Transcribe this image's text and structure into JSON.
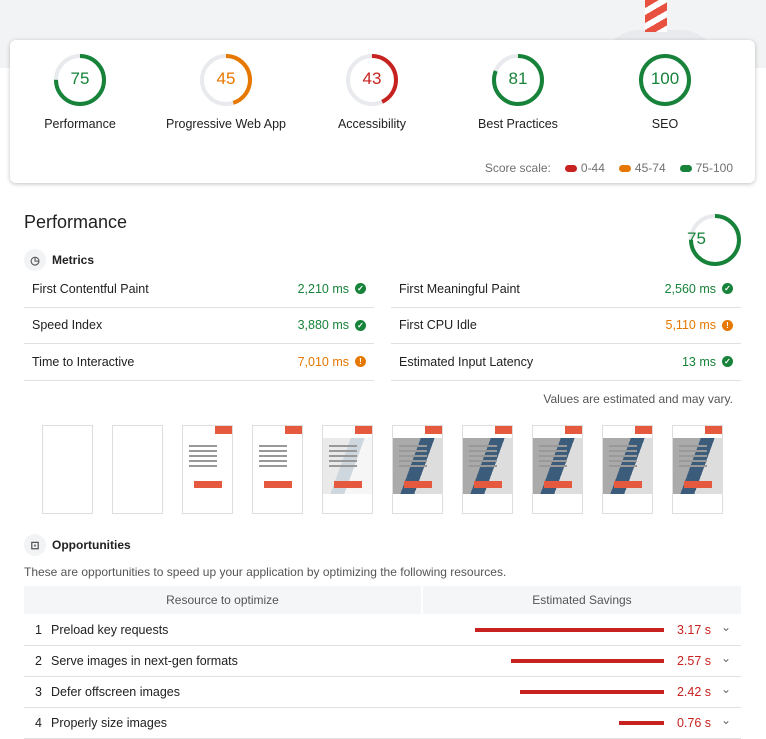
{
  "categories": [
    {
      "label": "Performance",
      "score": 75
    },
    {
      "label": "Progressive Web App",
      "score": 45
    },
    {
      "label": "Accessibility",
      "score": 43
    },
    {
      "label": "Best Practices",
      "score": 81
    },
    {
      "label": "SEO",
      "score": 100
    }
  ],
  "score_scale": {
    "label": "Score scale:",
    "ranges": [
      {
        "label": "0-44",
        "color": "#c7221f"
      },
      {
        "label": "45-74",
        "color": "#e67700"
      },
      {
        "label": "75-100",
        "color": "#178239"
      }
    ]
  },
  "performance": {
    "title": "Performance",
    "score": 75,
    "metrics_label": "Metrics",
    "metrics_left": [
      {
        "name": "First Contentful Paint",
        "value": "2,210 ms",
        "status": "pass"
      },
      {
        "name": "Speed Index",
        "value": "3,880 ms",
        "status": "pass"
      },
      {
        "name": "Time to Interactive",
        "value": "7,010 ms",
        "status": "average"
      }
    ],
    "metrics_right": [
      {
        "name": "First Meaningful Paint",
        "value": "2,560 ms",
        "status": "pass"
      },
      {
        "name": "First CPU Idle",
        "value": "5,110 ms",
        "status": "average"
      },
      {
        "name": "Estimated Input Latency",
        "value": "13 ms",
        "status": "pass"
      }
    ],
    "note": "Values are estimated and may vary.",
    "filmstrip": [
      "blank",
      "blank",
      "text",
      "text",
      "fading",
      "image",
      "image",
      "image",
      "image",
      "image"
    ]
  },
  "opportunities": {
    "title": "Opportunities",
    "description": "These are opportunities to speed up your application by optimizing the following resources.",
    "col_resource": "Resource to optimize",
    "col_savings": "Estimated Savings",
    "items": [
      {
        "num": "1",
        "title": "Preload key requests",
        "savings": "3.17 s",
        "seconds": 3.17
      },
      {
        "num": "2",
        "title": "Serve images in next-gen formats",
        "savings": "2.57 s",
        "seconds": 2.57
      },
      {
        "num": "3",
        "title": "Defer offscreen images",
        "savings": "2.42 s",
        "seconds": 2.42
      },
      {
        "num": "4",
        "title": "Properly size images",
        "savings": "0.76 s",
        "seconds": 0.76
      }
    ]
  }
}
